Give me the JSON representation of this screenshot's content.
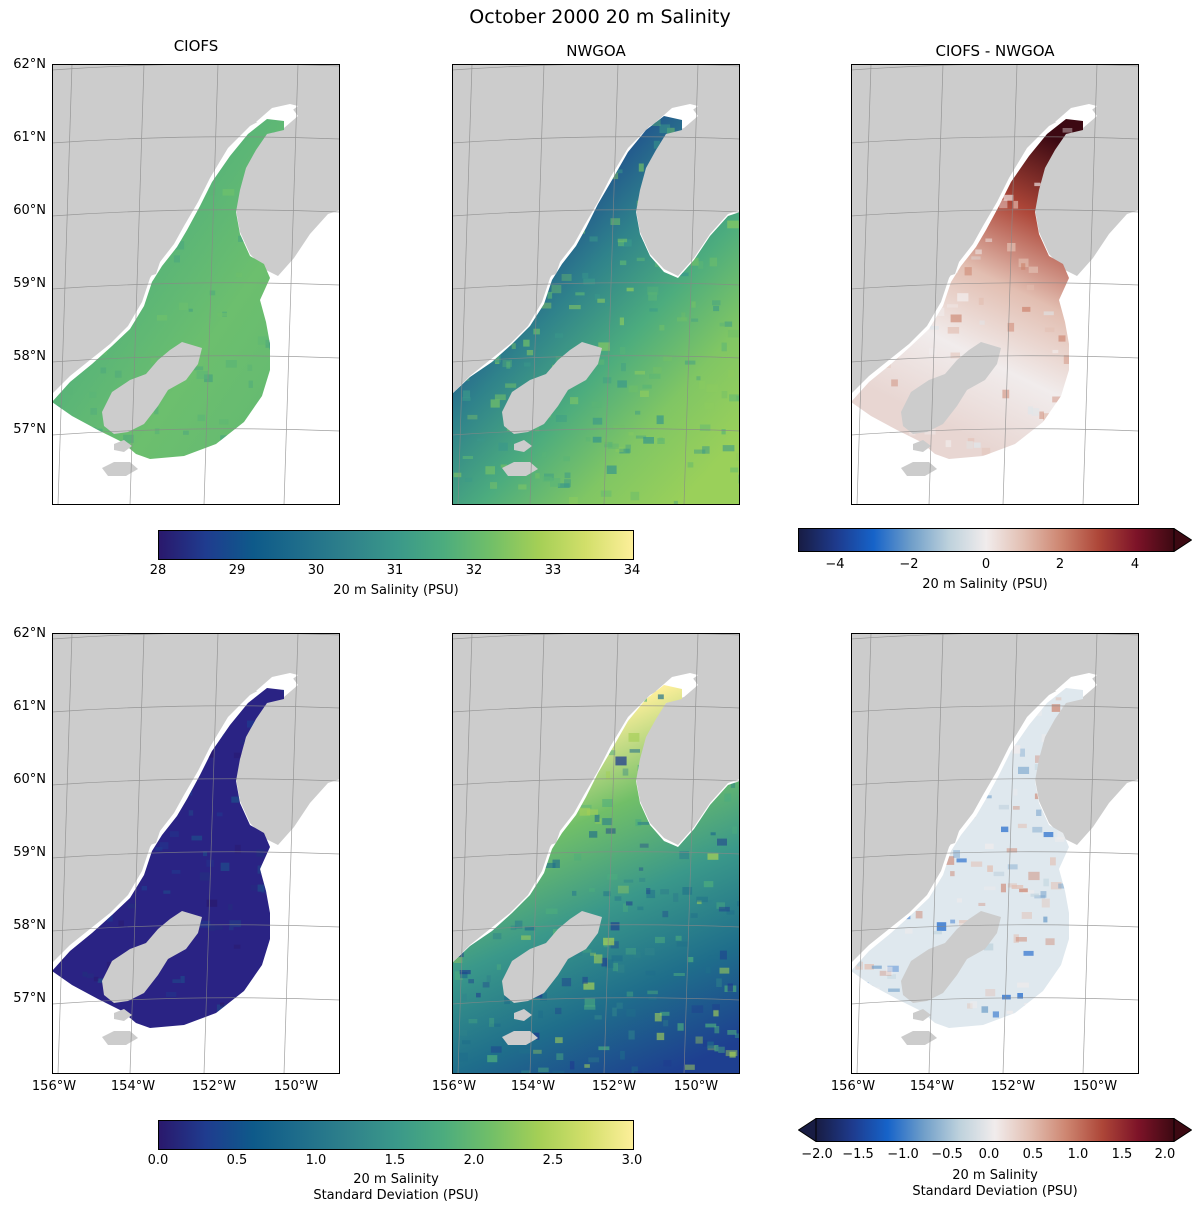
{
  "figure": {
    "title": "October 2000 20 m Salinity"
  },
  "panels": {
    "row1": [
      {
        "id": "ciofs-salinity",
        "title": "CIOFS",
        "field": "salinity",
        "model": "CIOFS",
        "colormap": "haline"
      },
      {
        "id": "nwgoa-salinity",
        "title": "NWGOA",
        "field": "salinity",
        "model": "NWGOA",
        "colormap": "haline"
      },
      {
        "id": "diff-salinity",
        "title": "CIOFS - NWGOA",
        "field": "salinity_difference",
        "model": "CIOFS - NWGOA",
        "colormap": "balance"
      }
    ],
    "row2": [
      {
        "id": "ciofs-std",
        "title": "",
        "field": "salinity_std",
        "model": "CIOFS",
        "colormap": "haline"
      },
      {
        "id": "nwgoa-std",
        "title": "",
        "field": "salinity_std",
        "model": "NWGOA",
        "colormap": "haline"
      },
      {
        "id": "diff-std",
        "title": "",
        "field": "salinity_std_difference",
        "model": "CIOFS - NWGOA",
        "colormap": "balance"
      }
    ]
  },
  "axes": {
    "lat_ticks": [
      "62°N",
      "61°N",
      "60°N",
      "59°N",
      "58°N",
      "57°N"
    ],
    "lon_ticks": [
      "156°W",
      "154°W",
      "152°W",
      "150°W"
    ],
    "lat_extent": [
      56,
      62
    ],
    "lon_extent": [
      -156,
      -149
    ]
  },
  "colorbars": {
    "salinity": {
      "label": "20 m Salinity (PSU)",
      "ticks": [
        "28",
        "29",
        "30",
        "31",
        "32",
        "33",
        "34"
      ],
      "range": [
        28,
        34
      ],
      "extend": "neither"
    },
    "salinity_diff": {
      "label": "20 m Salinity (PSU)",
      "ticks": [
        "−4",
        "−2",
        "0",
        "2",
        "4"
      ],
      "range": [
        -5,
        5
      ],
      "extend": "max"
    },
    "std": {
      "label_line1": "20 m Salinity",
      "label_line2": "Standard Deviation (PSU)",
      "ticks": [
        "0.0",
        "0.5",
        "1.0",
        "1.5",
        "2.0",
        "2.5",
        "3.0"
      ],
      "range": [
        0,
        3
      ],
      "extend": "neither"
    },
    "std_diff": {
      "label_line1": "20 m Salinity",
      "label_line2": "Standard Deviation (PSU)",
      "ticks": [
        "−2.0",
        "−1.5",
        "−1.0",
        "−0.5",
        "0.0",
        "0.5",
        "1.0",
        "1.5",
        "2.0"
      ],
      "range": [
        -2,
        2
      ],
      "extend": "both"
    }
  },
  "colors": {
    "land": "#cccccc",
    "background": "#ffffff",
    "gridline": "#888888",
    "haline_low": "#2a186c",
    "haline_mid": "#2f8f8a",
    "haline_high": "#fdef9a",
    "balance_low": "#181c43",
    "balance_mid": "#f1ecec",
    "balance_high": "#3c0912"
  }
}
